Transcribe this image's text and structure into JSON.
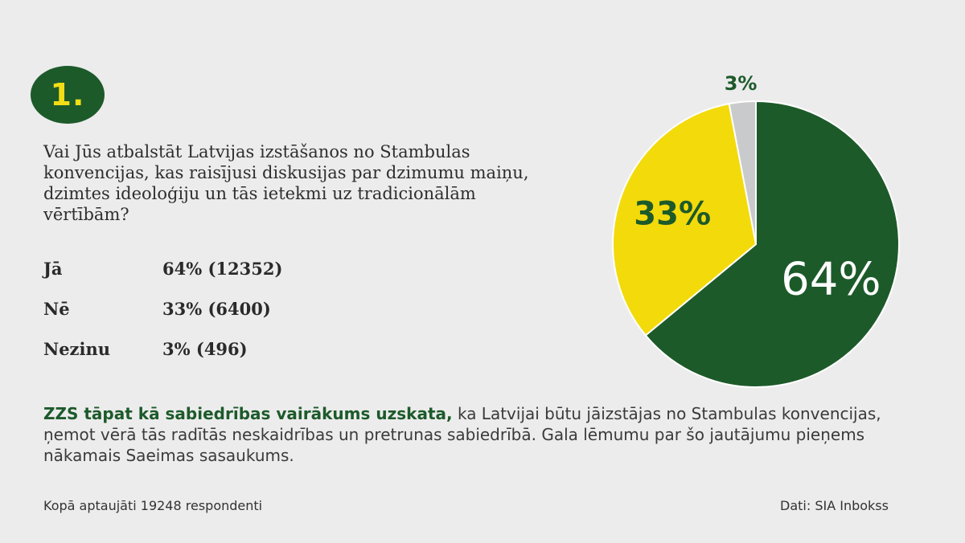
{
  "badge": {
    "number": "1."
  },
  "question": "Vai Jūs atbalstāt Latvijas izstāšanos no Stambulas konvencijas, kas raisījusi diskusijas par dzimumu maiņu, dzimtes ideoloģiju un tās ietekmi uz tradicionālām vērtībām?",
  "results": [
    {
      "label": "Jā",
      "value": "64% (12352)"
    },
    {
      "label": "Nē",
      "value": "33% (6400)"
    },
    {
      "label": "Nezinu",
      "value": "3% (496)"
    }
  ],
  "summary": {
    "lead": "ZZS tāpat kā sabiedrības vairākums uzskata,",
    "rest": " ka Latvijai būtu jāizstājas no Stambulas konvencijas, ņemot vērā tās radītās neskaidrības un pretrunas sabiedrībā. Gala lēmumu par šo jautājumu pieņems nākamais Saeimas sasaukums."
  },
  "footer": {
    "left": "Kopā aptaujāti 19248 respondenti",
    "right": "Dati: SIA Inbokss"
  },
  "chart_data": {
    "type": "pie",
    "categories": [
      "Jā",
      "Nē",
      "Nezinu"
    ],
    "values": [
      64,
      33,
      3
    ],
    "labels": [
      "64%",
      "33%",
      "3%"
    ],
    "colors": [
      "#1d5a2a",
      "#f3da0b",
      "#c9cacb"
    ],
    "label_colors": [
      "#ffffff",
      "#1d5a2a",
      "#1d5a2a"
    ]
  }
}
